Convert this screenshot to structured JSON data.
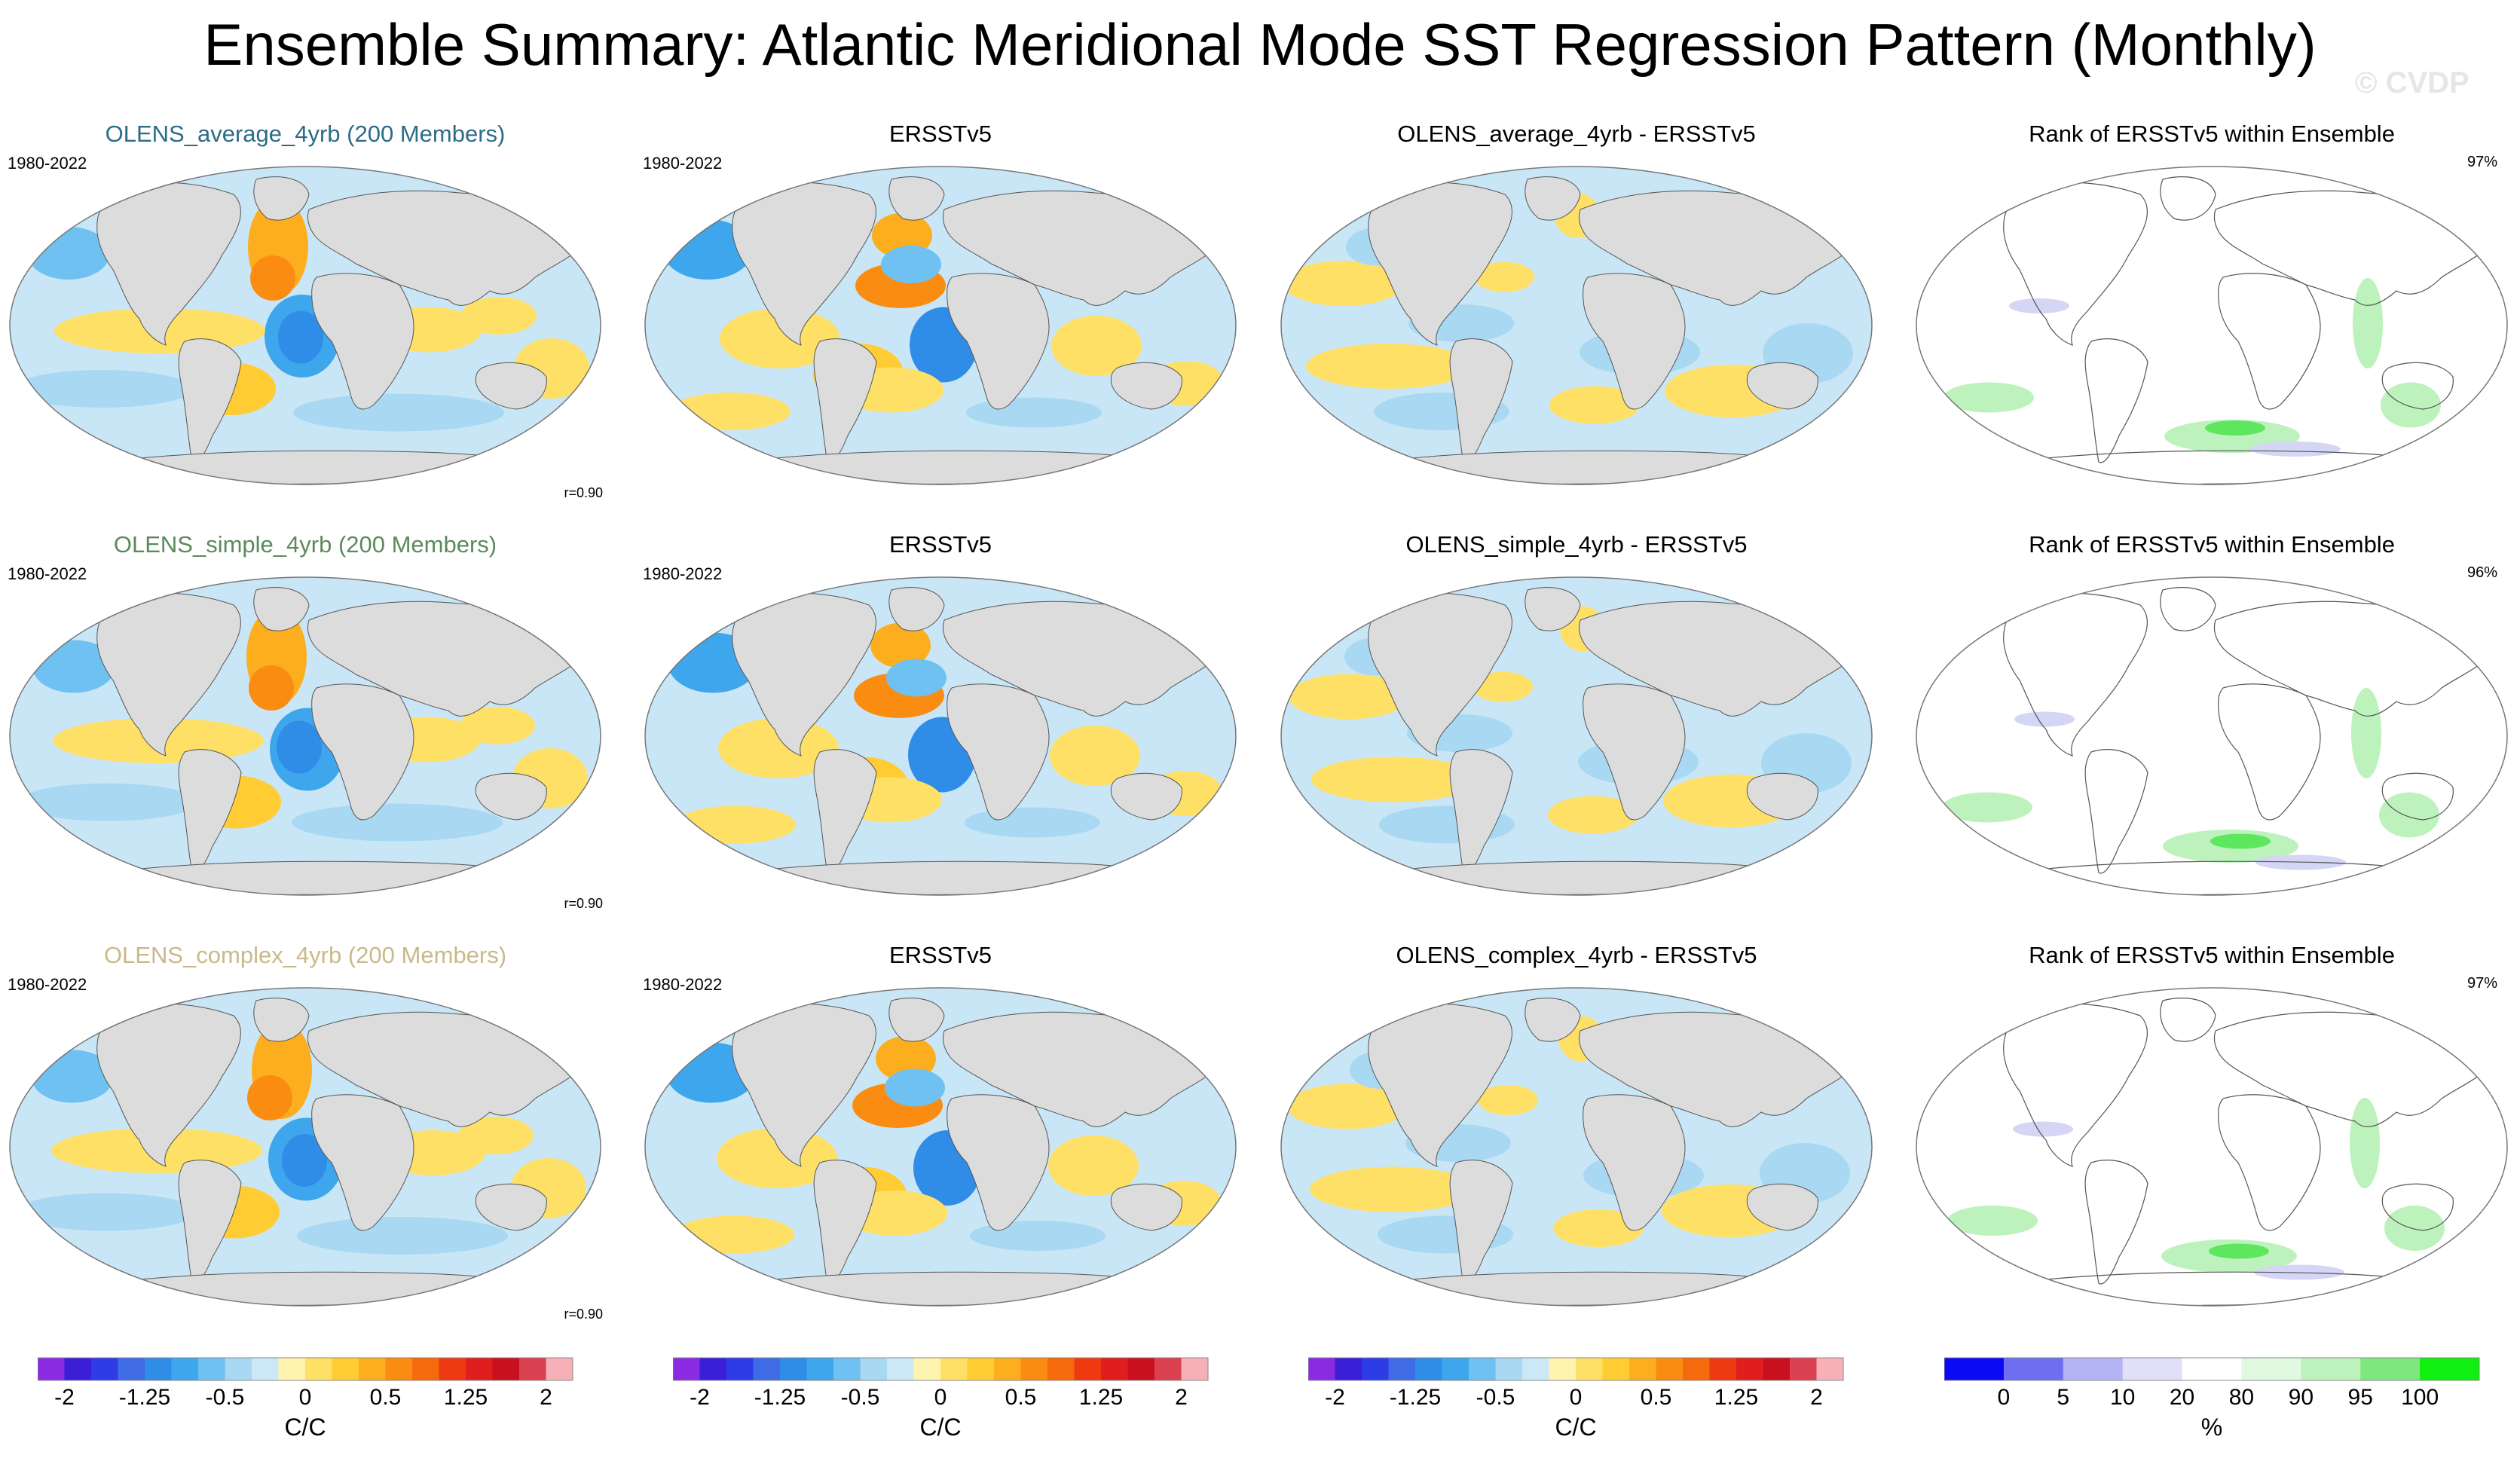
{
  "title": "Ensemble Summary: Atlantic Meridional Mode SST Regression Pattern (Monthly)",
  "watermark": "© CVDP",
  "colors": {
    "ocean_base": "#c9e6f7",
    "land": "#dcdcdc",
    "ensemble_titles": [
      "#2c6c87",
      "#5b8a5b",
      "#c9b98a"
    ]
  },
  "rows": [
    {
      "ensemble": {
        "title": "OLENS_average_4yrb (200 Members)",
        "years": "1980-2022",
        "correlation": "r=0.90"
      },
      "observed": {
        "title": "ERSSTv5",
        "years": "1980-2022"
      },
      "difference": {
        "title": "OLENS_average_4yrb - ERSSTv5"
      },
      "rank": {
        "title": "Rank of ERSSTv5 within Ensemble",
        "percent": "97%"
      }
    },
    {
      "ensemble": {
        "title": "OLENS_simple_4yrb (200 Members)",
        "years": "1980-2022",
        "correlation": "r=0.90"
      },
      "observed": {
        "title": "ERSSTv5",
        "years": "1980-2022"
      },
      "difference": {
        "title": "OLENS_simple_4yrb - ERSSTv5"
      },
      "rank": {
        "title": "Rank of ERSSTv5 within Ensemble",
        "percent": "96%"
      }
    },
    {
      "ensemble": {
        "title": "OLENS_complex_4yrb (200 Members)",
        "years": "1980-2022",
        "correlation": "r=0.90"
      },
      "observed": {
        "title": "ERSSTv5",
        "years": "1980-2022"
      },
      "difference": {
        "title": "OLENS_complex_4yrb - ERSSTv5"
      },
      "rank": {
        "title": "Rank of ERSSTv5 within Ensemble",
        "percent": "97%"
      }
    }
  ],
  "chart_data": [
    {
      "type": "heatmap",
      "name": "sst-regression-colorbar",
      "levels": [
        -2.0,
        -1.75,
        -1.5,
        -1.25,
        -1.0,
        -0.75,
        -0.5,
        -0.25,
        -0.1,
        0,
        0.1,
        0.25,
        0.5,
        0.75,
        1.0,
        1.25,
        1.5,
        1.75,
        2.0
      ],
      "tick_labels": [
        "-2",
        "-1.25",
        "-0.5",
        "0",
        "0.5",
        "1.25",
        "2"
      ],
      "tick_level_index": [
        0,
        3,
        6,
        9,
        12,
        15,
        18
      ],
      "colors": [
        "#8a2be2",
        "#3a1fd6",
        "#2e3ce6",
        "#3f6be6",
        "#2f8de8",
        "#3ea6ec",
        "#6ec1f0",
        "#a8d8f2",
        "#cce8f7",
        "#fff3b0",
        "#ffe066",
        "#ffcc33",
        "#fdae1f",
        "#fb8c12",
        "#f56a0c",
        "#ee3a10",
        "#e01e1e",
        "#c8101e",
        "#d94050",
        "#f7b0b8"
      ],
      "unit": "C/C"
    },
    {
      "type": "heatmap",
      "name": "rank-colorbar",
      "levels": [
        0,
        5,
        10,
        20,
        80,
        90,
        95,
        100
      ],
      "tick_labels": [
        "0",
        "5",
        "10",
        "20",
        "80",
        "90",
        "95",
        "100"
      ],
      "colors": [
        "#0a0af5",
        "#6e6ef0",
        "#b4b4f2",
        "#e0e0f8",
        "#ffffff",
        "#e0f7e0",
        "#bdf2bd",
        "#7ee87e",
        "#10f010"
      ],
      "unit": "%"
    }
  ]
}
